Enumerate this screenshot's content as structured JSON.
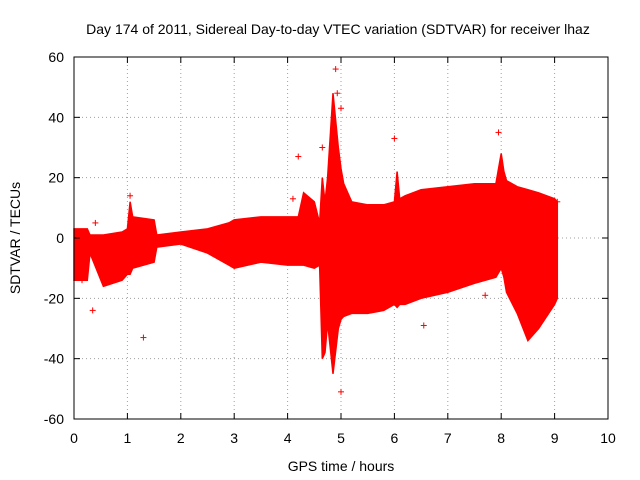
{
  "chart_data": {
    "type": "scatter",
    "title": "Day 174 of 2011, Sidereal Day-to-day VTEC variation (SDTVAR) for receiver lhaz",
    "xlabel": "GPS time / hours",
    "ylabel": "SDTVAR / TECUs",
    "xlim": [
      0,
      10
    ],
    "ylim": [
      -60,
      60
    ],
    "xticks": [
      "0",
      "1",
      "2",
      "3",
      "4",
      "5",
      "6",
      "7",
      "8",
      "9",
      "10"
    ],
    "yticks": [
      "-60",
      "-40",
      "-20",
      "0",
      "20",
      "40",
      "60"
    ],
    "grid": true,
    "series_color": "#ff0000",
    "series": [
      {
        "name": "SDTVAR",
        "marker": "+",
        "envelope_x": [
          0.0,
          0.25,
          0.3,
          0.55,
          0.9,
          1.0,
          1.05,
          1.1,
          1.5,
          1.55,
          2.0,
          2.5,
          2.9,
          3.0,
          3.5,
          4.0,
          4.2,
          4.3,
          4.5,
          4.6,
          4.65,
          4.7,
          4.75,
          4.85,
          4.95,
          5.0,
          5.05,
          5.2,
          5.5,
          5.8,
          6.0,
          6.05,
          6.1,
          6.2,
          6.5,
          7.0,
          7.5,
          7.9,
          8.0,
          8.05,
          8.1,
          8.3,
          8.5,
          8.7,
          9.0,
          9.05
        ],
        "envelope_upper": [
          3,
          3,
          1,
          1,
          2,
          3,
          12,
          7,
          6,
          1,
          2,
          3,
          5,
          6,
          7,
          7,
          7,
          15,
          12,
          5,
          20,
          12,
          20,
          48,
          30,
          23,
          18,
          12,
          11,
          11,
          12,
          22,
          13,
          14,
          16,
          17,
          18,
          18,
          28,
          22,
          19,
          17,
          16,
          15,
          13,
          12
        ],
        "envelope_lower": [
          -14,
          -14,
          -5,
          -16,
          -14,
          -12,
          -12,
          -10,
          -8,
          -3,
          -2,
          -5,
          -9,
          -10,
          -8,
          -9,
          -9,
          -9,
          -10,
          -9,
          -40,
          -38,
          -28,
          -45,
          -30,
          -27,
          -26,
          -25,
          -25,
          -24,
          -22,
          -23,
          -22,
          -22,
          -20,
          -18,
          -15,
          -13,
          -10,
          -13,
          -18,
          -25,
          -34,
          -30,
          -22,
          -20
        ],
        "outliers_x": [
          0.15,
          0.35,
          0.4,
          1.3,
          1.05,
          4.2,
          4.1,
          4.65,
          4.9,
          4.93,
          5.0,
          5.0,
          6.0,
          6.55,
          7.7,
          7.95,
          9.05
        ],
        "outliers_y": [
          -14,
          -24,
          5,
          -33,
          14,
          27,
          13,
          30,
          56,
          48,
          43,
          -51,
          33,
          -29,
          -19,
          35,
          12
        ]
      }
    ]
  }
}
